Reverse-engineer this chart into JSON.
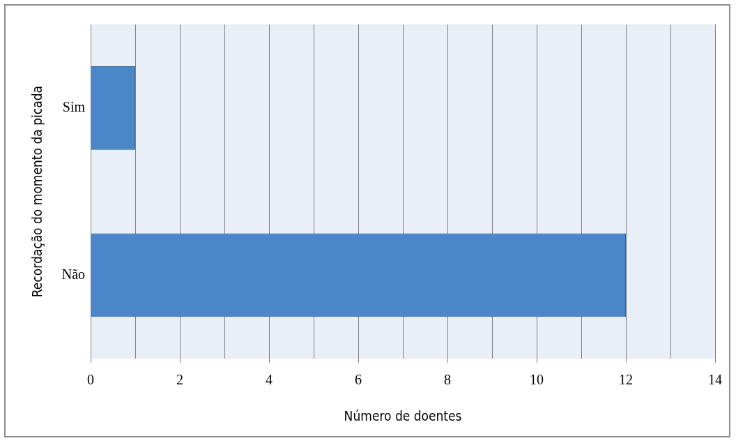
{
  "chart_data": {
    "type": "bar",
    "orientation": "horizontal",
    "xlabel": "Número de doentes",
    "ylabel": "Recordação do momento da picada",
    "categories": [
      "Sim",
      "Não"
    ],
    "values": [
      1,
      12
    ],
    "color": "#4a86c8",
    "xlim": [
      0,
      14
    ],
    "xticks": [
      0,
      {
        "value": 1,
        "label": null
      },
      2,
      {
        "value": 3,
        "label": null
      },
      4,
      {
        "value": 5,
        "label": null
      },
      6,
      {
        "value": 7,
        "label": null
      },
      8,
      {
        "value": 9,
        "label": null
      },
      10,
      {
        "value": 11,
        "label": null
      },
      12,
      {
        "value": 13,
        "label": null
      },
      14
    ],
    "grid": "x",
    "legend": false
  }
}
